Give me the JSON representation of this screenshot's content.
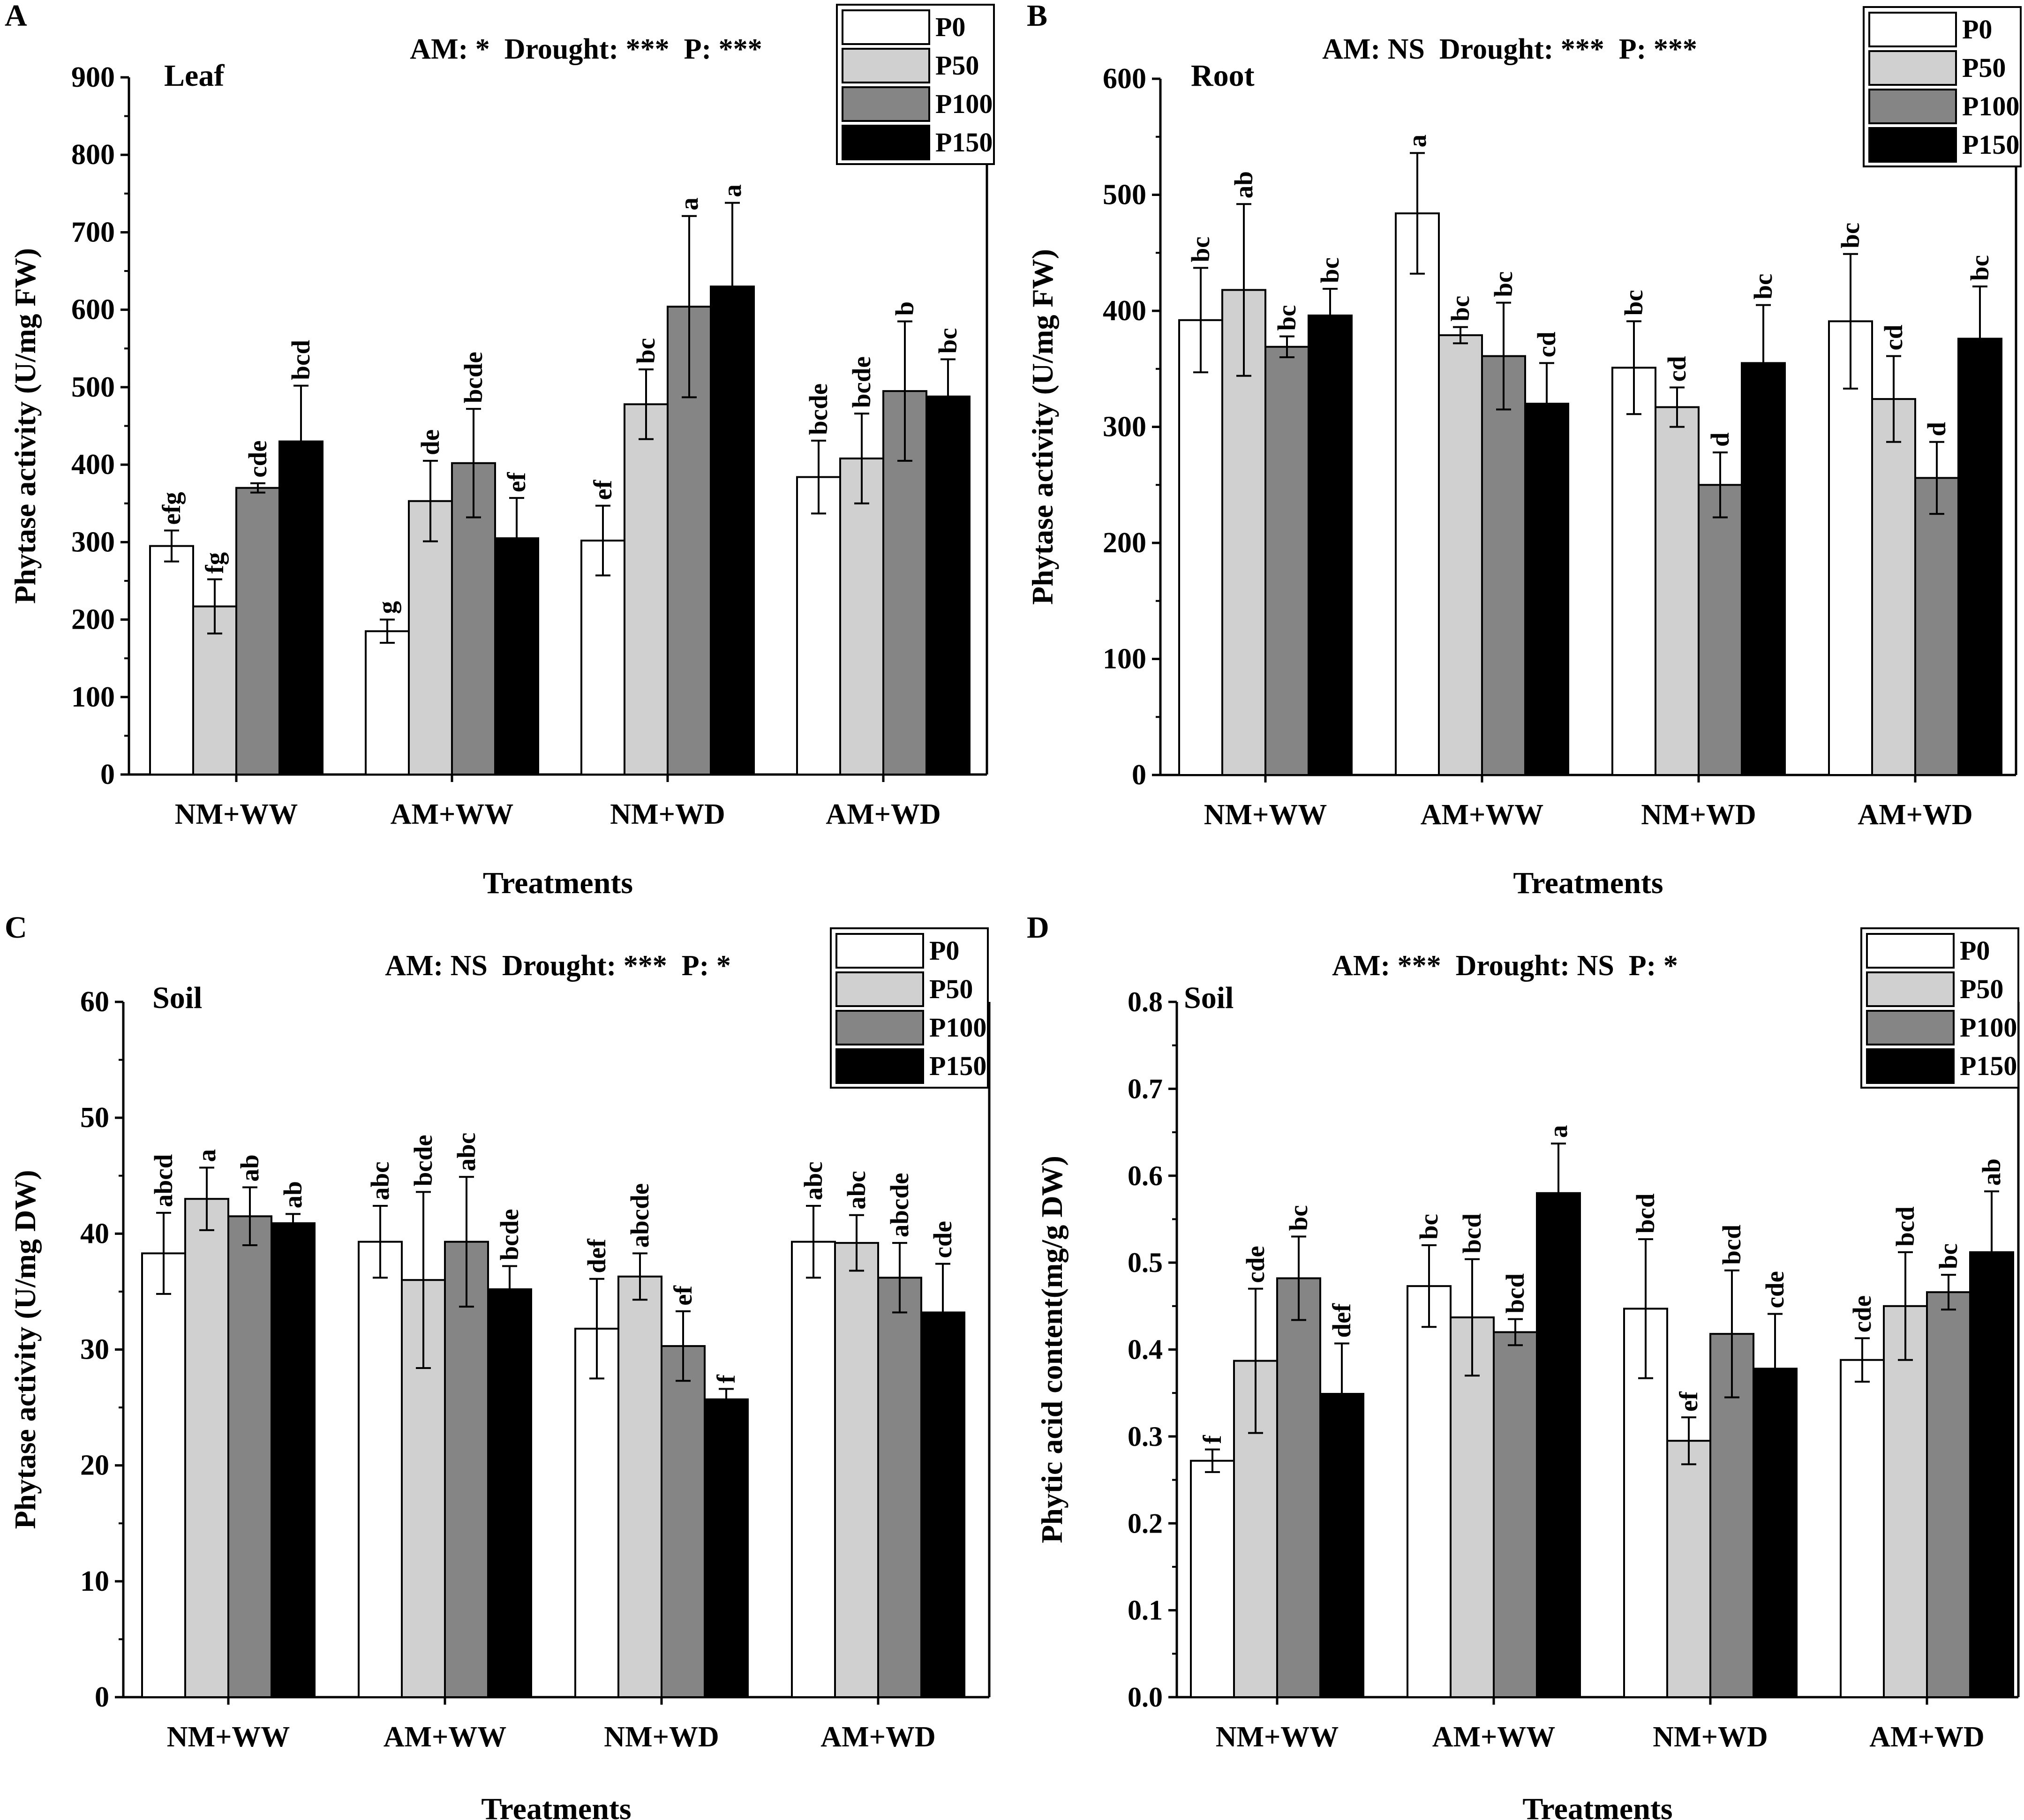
{
  "chart_data": [
    {
      "panel": "A",
      "type": "bar",
      "subtitle": "Leaf",
      "significance": "AM: *  Drought: ***  P: ***",
      "ylabel": "Phytase activity (U/mg FW)",
      "xlabel": "Treatments",
      "ylim": [
        0,
        900
      ],
      "yticks": [
        "0",
        "100",
        "200",
        "300",
        "400",
        "500",
        "600",
        "700",
        "800",
        "900"
      ],
      "categories": [
        "NM+WW",
        "AM+WW",
        "NM+WD",
        "AM+WD"
      ],
      "legend": [
        "P0",
        "P50",
        "P100",
        "P150"
      ],
      "series": [
        {
          "name": "P0",
          "color": "#ffffff",
          "values": [
            295,
            185,
            302,
            384
          ],
          "errors": [
            20,
            15,
            45,
            47
          ],
          "letters": [
            "efg",
            "g",
            "ef",
            "bcde"
          ]
        },
        {
          "name": "P50",
          "color": "#d0d0d0",
          "values": [
            217,
            353,
            478,
            408
          ],
          "errors": [
            35,
            52,
            45,
            58
          ],
          "letters": [
            "fg",
            "de",
            "bc",
            "bcde"
          ]
        },
        {
          "name": "P100",
          "color": "#858585",
          "values": [
            370,
            402,
            604,
            495
          ],
          "errors": [
            6,
            70,
            117,
            90
          ],
          "letters": [
            "cde",
            "bcde",
            "a",
            "b"
          ]
        },
        {
          "name": "P150",
          "color": "#000000",
          "values": [
            430,
            305,
            630,
            488
          ],
          "errors": [
            72,
            52,
            108,
            48
          ],
          "letters": [
            "bcd",
            "ef",
            "a",
            "bc"
          ]
        }
      ]
    },
    {
      "panel": "B",
      "type": "bar",
      "subtitle": "Root",
      "significance": "AM: NS  Drought: ***  P: ***",
      "ylabel": "Phytase activity (U/mg FW)",
      "xlabel": "Treatments",
      "ylim": [
        0,
        600
      ],
      "yticks": [
        "0",
        "100",
        "200",
        "300",
        "400",
        "500",
        "600"
      ],
      "categories": [
        "NM+WW",
        "AM+WW",
        "NM+WD",
        "AM+WD"
      ],
      "legend": [
        "P0",
        "P50",
        "P100",
        "P150"
      ],
      "series": [
        {
          "name": "P0",
          "color": "#ffffff",
          "values": [
            392,
            484,
            351,
            391
          ],
          "errors": [
            45,
            52,
            40,
            58
          ],
          "letters": [
            "bc",
            "a",
            "bc",
            "bc"
          ]
        },
        {
          "name": "P50",
          "color": "#d0d0d0",
          "values": [
            418,
            379,
            317,
            324
          ],
          "errors": [
            74,
            7,
            17,
            37
          ],
          "letters": [
            "ab",
            "bc",
            "cd",
            "cd"
          ]
        },
        {
          "name": "P100",
          "color": "#858585",
          "values": [
            369,
            361,
            250,
            256
          ],
          "errors": [
            9,
            46,
            28,
            31
          ],
          "letters": [
            "bc",
            "bc",
            "d",
            "d"
          ]
        },
        {
          "name": "P150",
          "color": "#000000",
          "values": [
            396,
            320,
            355,
            376
          ],
          "errors": [
            23,
            35,
            50,
            45
          ],
          "letters": [
            "bc",
            "cd",
            "bc",
            "bc"
          ]
        }
      ]
    },
    {
      "panel": "C",
      "type": "bar",
      "subtitle": "Soil",
      "significance": "AM: NS  Drought: ***  P: *",
      "ylabel": "Phytase activity (U/mg DW)",
      "xlabel": "Treatments",
      "ylim": [
        0,
        60
      ],
      "yticks": [
        "0",
        "10",
        "20",
        "30",
        "40",
        "50",
        "60"
      ],
      "categories": [
        "NM+WW",
        "AM+WW",
        "NM+WD",
        "AM+WD"
      ],
      "legend": [
        "P0",
        "P50",
        "P100",
        "P150"
      ],
      "series": [
        {
          "name": "P0",
          "color": "#ffffff",
          "values": [
            38.3,
            39.3,
            31.8,
            39.3
          ],
          "errors": [
            3.5,
            3.1,
            4.3,
            3.1
          ],
          "letters": [
            "abcd",
            "abc",
            "def",
            "abc"
          ]
        },
        {
          "name": "P50",
          "color": "#d0d0d0",
          "values": [
            43.0,
            36.0,
            36.3,
            39.2
          ],
          "errors": [
            2.7,
            7.6,
            2.0,
            2.4
          ],
          "letters": [
            "a",
            "bcde",
            "abcde",
            "abc"
          ]
        },
        {
          "name": "P100",
          "color": "#858585",
          "values": [
            41.5,
            39.3,
            30.3,
            36.2
          ],
          "errors": [
            2.5,
            5.6,
            3.0,
            3.0
          ],
          "letters": [
            "ab",
            "abc",
            "ef",
            "abcde"
          ]
        },
        {
          "name": "P150",
          "color": "#000000",
          "values": [
            40.9,
            35.2,
            25.7,
            33.2
          ],
          "errors": [
            0.8,
            2.0,
            0.9,
            4.2
          ],
          "letters": [
            "ab",
            "bcde",
            "f",
            "cde"
          ]
        }
      ]
    },
    {
      "panel": "D",
      "type": "bar",
      "subtitle": "Soil",
      "significance": "AM: ***  Drought: NS  P: *",
      "ylabel": "Phytic acid content(mg/g DW)",
      "xlabel": "Treatments",
      "ylim": [
        0,
        0.8
      ],
      "yticks": [
        "0.0",
        "0.1",
        "0.2",
        "0.3",
        "0.4",
        "0.5",
        "0.6",
        "0.7",
        "0.8"
      ],
      "categories": [
        "NM+WW",
        "AM+WW",
        "NM+WD",
        "AM+WD"
      ],
      "legend": [
        "P0",
        "P50",
        "P100",
        "P150"
      ],
      "series": [
        {
          "name": "P0",
          "color": "#ffffff",
          "values": [
            0.272,
            0.473,
            0.447,
            0.388
          ],
          "errors": [
            0.013,
            0.047,
            0.08,
            0.025
          ],
          "letters": [
            "f",
            "bc",
            "bcd",
            "cde"
          ]
        },
        {
          "name": "P50",
          "color": "#d0d0d0",
          "values": [
            0.387,
            0.437,
            0.295,
            0.45
          ],
          "errors": [
            0.083,
            0.067,
            0.027,
            0.062
          ],
          "letters": [
            "cde",
            "bcd",
            "ef",
            "bcd"
          ]
        },
        {
          "name": "P100",
          "color": "#858585",
          "values": [
            0.482,
            0.42,
            0.418,
            0.466
          ],
          "errors": [
            0.048,
            0.015,
            0.073,
            0.02
          ],
          "letters": [
            "bc",
            "bcd",
            "bcd",
            "bc"
          ]
        },
        {
          "name": "P150",
          "color": "#000000",
          "values": [
            0.349,
            0.58,
            0.378,
            0.512
          ],
          "errors": [
            0.058,
            0.057,
            0.063,
            0.07
          ],
          "letters": [
            "def",
            "a",
            "cde",
            "ab"
          ]
        }
      ]
    }
  ]
}
